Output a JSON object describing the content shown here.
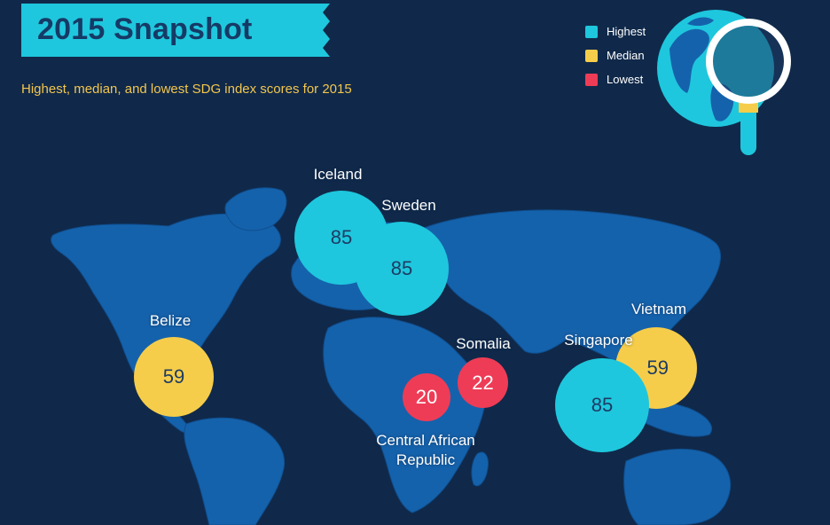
{
  "title": "2015 Snapshot",
  "subtitle": "Highest, median, and lowest SDG index scores for 2015",
  "legend": [
    {
      "label": "Highest",
      "color": "#1ec7dd"
    },
    {
      "label": "Median",
      "color": "#f6cd4a"
    },
    {
      "label": "Lowest",
      "color": "#ee3c56"
    }
  ],
  "icons": {
    "globe": "globe-icon",
    "magnifier": "magnifying-glass-icon"
  },
  "colors": {
    "background": "#10294a",
    "map": "#1562ac",
    "banner": "#1ec7dd"
  },
  "countries": [
    {
      "name": "Iceland",
      "score": "85",
      "category": "Highest"
    },
    {
      "name": "Sweden",
      "score": "85",
      "category": "Highest"
    },
    {
      "name": "Belize",
      "score": "59",
      "category": "Median"
    },
    {
      "name": "Somalia",
      "score": "22",
      "category": "Lowest"
    },
    {
      "name": "Central African Republic",
      "score": "20",
      "category": "Lowest"
    },
    {
      "name": "Singapore",
      "score": "85",
      "category": "Highest"
    },
    {
      "name": "Vietnam",
      "score": "59",
      "category": "Median"
    }
  ]
}
